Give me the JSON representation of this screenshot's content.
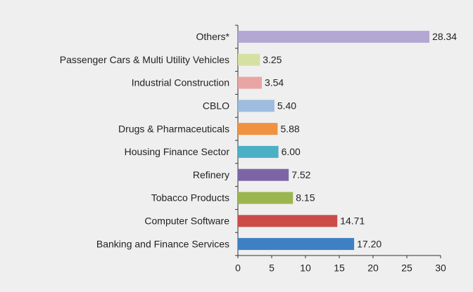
{
  "chart_data": {
    "type": "barh",
    "categories": [
      "Others*",
      "Passenger Cars & Multi Utility Vehicles",
      "Industrial Construction",
      "CBLO",
      "Drugs & Pharmaceuticals",
      "Housing Finance Sector",
      "Refinery",
      "Tobacco Products",
      "Computer Software",
      "Banking and Finance Services"
    ],
    "values": [
      28.34,
      3.25,
      3.54,
      5.4,
      5.88,
      6,
      7.52,
      8.15,
      14.71,
      17.2
    ],
    "value_labels": [
      "28.34",
      "3.25",
      "3.54",
      "5.40",
      "5.88",
      "6.00",
      "7.52",
      "8.15",
      "14.71",
      "17.20"
    ],
    "colors": [
      "#b3a7d3",
      "#d5e0a3",
      "#e8a5a4",
      "#9fbbdf",
      "#f0923f",
      "#4bafc6",
      "#7d65a5",
      "#9cb64f",
      "#cc4b49",
      "#3e80c3"
    ],
    "xlim": [
      0,
      30
    ],
    "xticks": [
      0,
      5,
      10,
      15,
      20,
      25,
      30
    ]
  }
}
